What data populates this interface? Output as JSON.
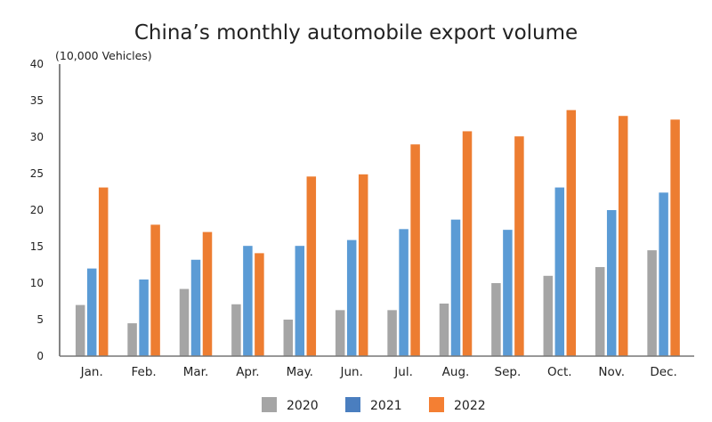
{
  "chart_data": {
    "type": "bar",
    "title": "China’s monthly automobile export volume",
    "ylabel": "(10,000 Vehicles)",
    "xlabel": "",
    "ylim": [
      0,
      40
    ],
    "yticks": [
      0,
      5,
      10,
      15,
      20,
      25,
      30,
      35,
      40
    ],
    "grid": false,
    "legend_position": "bottom",
    "categories": [
      "Jan.",
      "Feb.",
      "Mar.",
      "Apr.",
      "May.",
      "Jun.",
      "Jul.",
      "Aug.",
      "Sep.",
      "Oct.",
      "Nov.",
      "Dec."
    ],
    "series": [
      {
        "name": "2020",
        "color": "#a5a5a5",
        "legend_color": "#a5a5a5",
        "values": [
          7.0,
          4.5,
          9.2,
          7.1,
          5.0,
          6.3,
          6.3,
          7.2,
          10.0,
          11.0,
          12.2,
          14.5
        ]
      },
      {
        "name": "2021",
        "color": "#5b9bd5",
        "legend_color": "#4a7ebf",
        "values": [
          12.0,
          10.5,
          13.2,
          15.1,
          15.1,
          15.9,
          17.4,
          18.7,
          17.3,
          23.1,
          20.0,
          22.4
        ]
      },
      {
        "name": "2022",
        "color": "#ed7d31",
        "legend_color": "#f47f33",
        "values": [
          23.1,
          18.0,
          17.0,
          14.1,
          24.6,
          24.9,
          29.0,
          30.8,
          30.1,
          33.7,
          32.9,
          32.4
        ]
      }
    ]
  }
}
